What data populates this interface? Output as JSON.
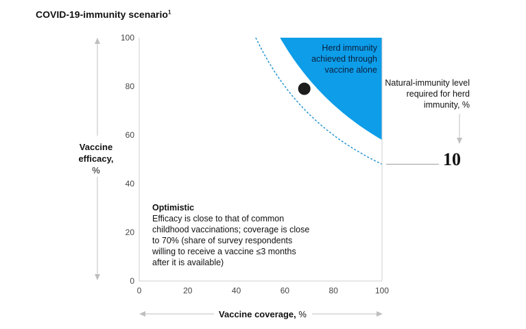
{
  "title": "COVID-19-immunity scenario",
  "title_footnote": "1",
  "ylabel_line1": "Vaccine",
  "ylabel_line2": "efficacy,",
  "ylabel_unit": "%",
  "xlabel_bold": "Vaccine coverage,",
  "xlabel_unit": "%",
  "herd_label": "Herd immunity achieved through vaccine alone",
  "natural_label": "Natural-immunity level required for herd immunity, %",
  "natural_value": "10",
  "scenario_title": "Optimistic",
  "scenario_text": "Efficacy is close to that of common childhood vaccinations; coverage is close to 70% (share of survey respondents willing to receive a vaccine ≤3 months after it is available)",
  "colors": {
    "herd_region": "#0d9de9",
    "dashed_curve": "#1a8fd0",
    "point": "#1c1c1c",
    "axis": "#cfcfcf",
    "arrow": "#bfbfbf"
  },
  "chart_data": {
    "type": "scatter",
    "xlabel": "Vaccine coverage, %",
    "ylabel": "Vaccine efficacy, %",
    "xlim": [
      0,
      100
    ],
    "ylim": [
      0,
      100
    ],
    "x_ticks": [
      0,
      20,
      40,
      60,
      80,
      100
    ],
    "y_ticks": [
      0,
      20,
      40,
      60,
      80,
      100
    ],
    "points": [
      {
        "x": 68,
        "y": 79
      }
    ],
    "herd_threshold_product": 0.58,
    "natural_threshold_product": 0.48,
    "grid": false
  }
}
